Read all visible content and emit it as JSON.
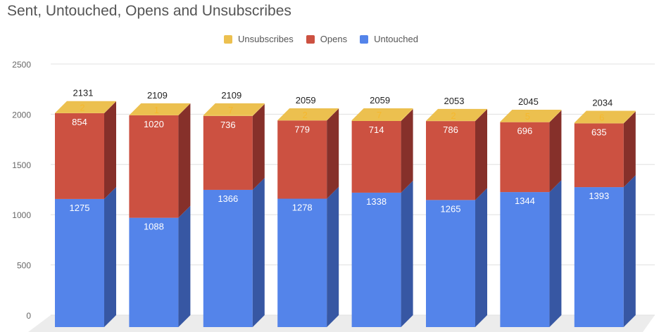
{
  "chart_data": {
    "type": "bar",
    "stacked": true,
    "three_d": true,
    "title": "Sent, Untouched, Opens and Unsubscribes",
    "legend_position": "top",
    "ylim": [
      0,
      2500
    ],
    "yticks": [
      0,
      500,
      1000,
      1500,
      2000,
      2500
    ],
    "grid": true,
    "totals": [
      2131,
      2109,
      2109,
      2059,
      2059,
      2053,
      2045,
      2034
    ],
    "series": [
      {
        "name": "Untouched",
        "color": "#5484ea",
        "side_color": "#3757a3",
        "label_color": "#ffffff",
        "values": [
          1275,
          1088,
          1366,
          1278,
          1338,
          1265,
          1344,
          1393
        ]
      },
      {
        "name": "Opens",
        "color": "#cc5141",
        "side_color": "#86302a",
        "label_color": "#ffffff",
        "values": [
          854,
          1020,
          736,
          779,
          714,
          786,
          696,
          635
        ]
      },
      {
        "name": "Unsubscribes",
        "color": "#ecc04f",
        "side_color": "#ecc04f",
        "label_color": "#f5b82e",
        "values": [
          2,
          1,
          7,
          2,
          7,
          2,
          5,
          6
        ]
      }
    ],
    "legend_order": [
      "Unsubscribes",
      "Opens",
      "Untouched"
    ]
  }
}
